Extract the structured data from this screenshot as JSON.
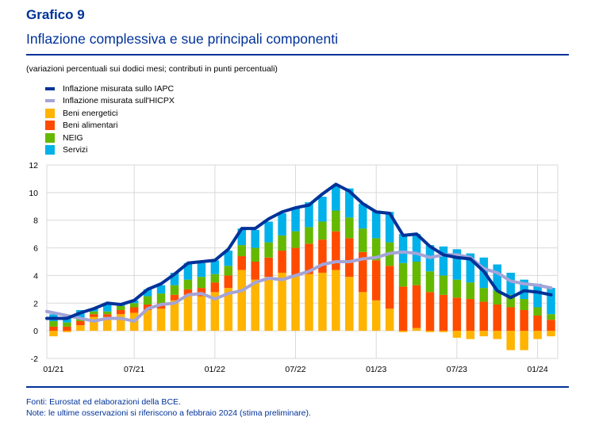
{
  "header": {
    "figure_label": "Grafico 9",
    "title": "Inflazione complessiva e sue principali componenti",
    "subtitle": "(variazioni percentuali sui dodici mesi; contributi in punti percentuali)"
  },
  "footer": {
    "sources": "Fonti: Eurostat ed elaborazioni della BCE.",
    "note": "Note: le ultime osservazioni si riferiscono a febbraio 2024 (stima preliminare)."
  },
  "legend": [
    {
      "label": "Inflazione misurata sullo IAPC",
      "kind": "line",
      "color": "#003299"
    },
    {
      "label": "Inflazione misurata sull'HICPX",
      "kind": "line",
      "color": "#a4a4d8"
    },
    {
      "label": "Beni energetici",
      "kind": "box",
      "color": "#ffb400"
    },
    {
      "label": "Beni alimentari",
      "kind": "box",
      "color": "#ff4b00"
    },
    {
      "label": "NEIG",
      "kind": "box",
      "color": "#65b800"
    },
    {
      "label": "Servizi",
      "kind": "box",
      "color": "#00b1ea"
    }
  ],
  "chart_data": {
    "type": "bar",
    "stacked": true,
    "title": "Inflazione complessiva e sue principali componenti",
    "xlabel": "",
    "ylabel": "",
    "ylim": [
      -2,
      12
    ],
    "yticks": [
      -2,
      0,
      2,
      4,
      6,
      8,
      10,
      12
    ],
    "grid": true,
    "legend_position": "top-left",
    "x": [
      "01/21",
      "02/21",
      "03/21",
      "04/21",
      "05/21",
      "06/21",
      "07/21",
      "08/21",
      "09/21",
      "10/21",
      "11/21",
      "12/21",
      "01/22",
      "02/22",
      "03/22",
      "04/22",
      "05/22",
      "06/22",
      "07/22",
      "08/22",
      "09/22",
      "10/22",
      "11/22",
      "12/22",
      "01/23",
      "02/23",
      "03/23",
      "04/23",
      "05/23",
      "06/23",
      "07/23",
      "08/23",
      "09/23",
      "10/23",
      "11/23",
      "12/23",
      "01/24",
      "02/24"
    ],
    "xtick_labels": [
      {
        "index": 0,
        "label": "01/21"
      },
      {
        "index": 6,
        "label": "07/21"
      },
      {
        "index": 12,
        "label": "01/22"
      },
      {
        "index": 18,
        "label": "07/22"
      },
      {
        "index": 24,
        "label": "01/23"
      },
      {
        "index": 30,
        "label": "07/23"
      },
      {
        "index": 36,
        "label": "01/24"
      }
    ],
    "series": [
      {
        "name": "Beni energetici",
        "kind": "bar",
        "color": "#ffb400",
        "values": [
          -0.4,
          -0.1,
          0.4,
          1.0,
          1.0,
          1.2,
          1.3,
          1.5,
          1.6,
          2.2,
          2.6,
          2.5,
          2.8,
          3.1,
          4.4,
          3.7,
          3.9,
          4.2,
          4.0,
          4.1,
          4.2,
          4.4,
          3.9,
          2.8,
          2.2,
          1.6,
          -0.1,
          0.2,
          -0.1,
          -0.1,
          -0.5,
          -0.6,
          -0.4,
          -0.6,
          -1.4,
          -1.4,
          -0.6,
          -0.4
        ]
      },
      {
        "name": "Beni alimentari",
        "kind": "bar",
        "color": "#ff4b00",
        "values": [
          0.3,
          0.3,
          0.3,
          0.2,
          0.2,
          0.3,
          0.4,
          0.4,
          0.4,
          0.4,
          0.4,
          0.6,
          0.7,
          0.9,
          1.0,
          1.3,
          1.4,
          1.6,
          2.0,
          2.2,
          2.4,
          2.8,
          2.8,
          2.9,
          2.9,
          3.1,
          3.2,
          3.1,
          2.8,
          2.6,
          2.4,
          2.3,
          2.1,
          1.9,
          1.7,
          1.5,
          1.1,
          0.8
        ]
      },
      {
        "name": "NEIG",
        "kind": "bar",
        "color": "#65b800",
        "values": [
          0.4,
          0.3,
          0.2,
          0.2,
          0.2,
          0.3,
          0.3,
          0.6,
          0.7,
          0.7,
          0.7,
          0.8,
          0.6,
          0.7,
          0.8,
          1.0,
          1.1,
          1.1,
          1.2,
          1.2,
          1.3,
          1.5,
          1.5,
          1.7,
          1.6,
          1.7,
          1.7,
          1.7,
          1.5,
          1.4,
          1.3,
          1.2,
          1.0,
          1.0,
          0.9,
          0.8,
          0.6,
          0.4
        ]
      },
      {
        "name": "Servizi",
        "kind": "bar",
        "color": "#00b1ea",
        "values": [
          0.5,
          0.4,
          0.6,
          0.2,
          0.6,
          0.2,
          0.2,
          0.5,
          0.6,
          0.9,
          1.2,
          1.0,
          1.0,
          1.1,
          1.2,
          1.3,
          1.5,
          1.6,
          1.7,
          1.8,
          1.8,
          1.8,
          2.1,
          1.8,
          2.0,
          2.2,
          2.1,
          2.0,
          1.9,
          2.1,
          2.2,
          2.1,
          2.2,
          1.9,
          1.6,
          1.4,
          1.7,
          1.9
        ]
      },
      {
        "name": "Inflazione misurata sullo IAPC",
        "kind": "line",
        "color": "#003299",
        "values": [
          0.9,
          0.9,
          1.3,
          1.6,
          2.0,
          1.9,
          2.2,
          3.0,
          3.4,
          4.1,
          4.9,
          5.0,
          5.1,
          5.9,
          7.4,
          7.4,
          8.1,
          8.6,
          8.9,
          9.1,
          9.9,
          10.6,
          10.1,
          9.2,
          8.6,
          8.5,
          6.9,
          7.0,
          6.1,
          5.5,
          5.3,
          5.2,
          4.3,
          2.9,
          2.4,
          2.9,
          2.8,
          2.6
        ]
      },
      {
        "name": "Inflazione misurata sull'HICPX",
        "kind": "line",
        "color": "#a4a4d8",
        "values": [
          1.4,
          1.1,
          0.9,
          0.7,
          0.9,
          0.9,
          0.7,
          1.6,
          1.9,
          2.0,
          2.6,
          2.7,
          2.3,
          2.7,
          2.9,
          3.5,
          3.8,
          3.7,
          4.0,
          4.3,
          4.8,
          5.0,
          5.0,
          5.2,
          5.3,
          5.6,
          5.7,
          5.6,
          5.3,
          5.5,
          5.5,
          5.3,
          4.5,
          4.2,
          3.6,
          3.4,
          3.3,
          3.1
        ]
      }
    ]
  }
}
